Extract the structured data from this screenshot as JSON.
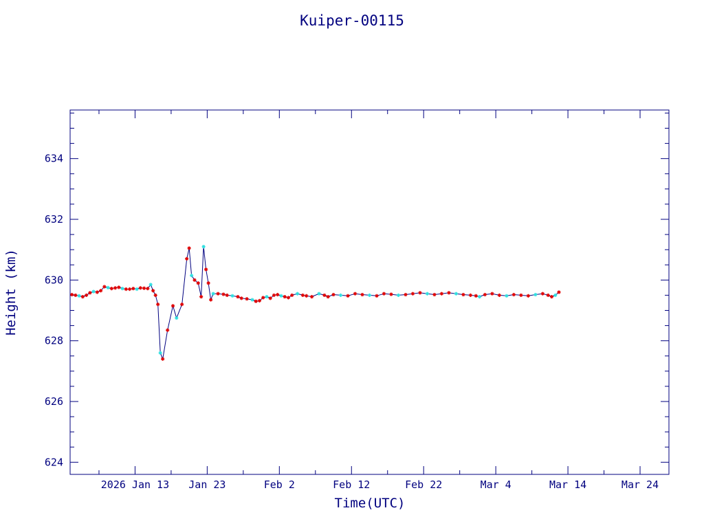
{
  "chart_data": {
    "type": "line",
    "title": "Kuiper-00115",
    "xlabel": "Time(UTC)",
    "ylabel": "Height (km)",
    "ylim": [
      623.6,
      635.6
    ],
    "xlim": [
      "2026-01-04",
      "2026-03-28"
    ],
    "y_ticks": [
      624,
      626,
      628,
      630,
      632,
      634
    ],
    "x_ticks": [
      {
        "date": "2026-01-13",
        "label": "2026 Jan 13"
      },
      {
        "date": "2026-01-23",
        "label": "Jan 23"
      },
      {
        "date": "2026-02-02",
        "label": "Feb  2"
      },
      {
        "date": "2026-02-12",
        "label": "Feb 12"
      },
      {
        "date": "2026-02-22",
        "label": "Feb 22"
      },
      {
        "date": "2026-03-04",
        "label": "Mar  4"
      },
      {
        "date": "2026-03-14",
        "label": "Mar 14"
      },
      {
        "date": "2026-03-24",
        "label": "Mar 24"
      }
    ],
    "grid": false,
    "colors": {
      "axis": "#00007f",
      "line": "#00007f",
      "marker_red": "#e00000",
      "marker_cyan": "#2fe0e0"
    },
    "series": [
      {
        "points": [
          [
            "2026-01-04",
            629.52
          ],
          [
            "2026-01-04",
            629.5
          ],
          [
            "2026-01-05",
            629.48
          ],
          [
            "2026-01-05",
            629.45
          ],
          [
            "2026-01-06",
            629.5
          ],
          [
            "2026-01-06",
            629.58
          ],
          [
            "2026-01-07",
            629.62
          ],
          [
            "2026-01-07",
            629.6
          ],
          [
            "2026-01-08",
            629.65
          ],
          [
            "2026-01-08",
            629.78
          ],
          [
            "2026-01-09",
            629.75
          ],
          [
            "2026-01-09",
            629.72
          ],
          [
            "2026-01-10",
            629.74
          ],
          [
            "2026-01-10",
            629.76
          ],
          [
            "2026-01-11",
            629.72
          ],
          [
            "2026-01-11",
            629.7
          ],
          [
            "2026-01-12",
            629.7
          ],
          [
            "2026-01-12",
            629.72
          ],
          [
            "2026-01-13",
            629.7
          ],
          [
            "2026-01-13",
            629.74
          ],
          [
            "2026-01-14",
            629.73
          ],
          [
            "2026-01-14",
            629.72
          ],
          [
            "2026-01-15",
            629.85
          ],
          [
            "2026-01-15",
            629.65
          ],
          [
            "2026-01-15",
            629.5
          ],
          [
            "2026-01-16",
            629.2
          ],
          [
            "2026-01-16",
            627.6
          ],
          [
            "2026-01-16",
            627.4
          ],
          [
            "2026-01-17",
            628.35
          ],
          [
            "2026-01-18",
            629.15
          ],
          [
            "2026-01-18",
            628.75
          ],
          [
            "2026-01-19",
            629.2
          ],
          [
            "2026-01-20",
            630.7
          ],
          [
            "2026-01-20",
            631.05
          ],
          [
            "2026-01-20",
            630.15
          ],
          [
            "2026-01-21",
            630.0
          ],
          [
            "2026-01-21",
            629.9
          ],
          [
            "2026-01-22",
            629.45
          ],
          [
            "2026-01-22",
            631.1
          ],
          [
            "2026-01-22",
            630.35
          ],
          [
            "2026-01-23",
            629.9
          ],
          [
            "2026-01-23",
            629.35
          ],
          [
            "2026-01-23",
            629.55
          ],
          [
            "2026-01-24",
            629.55
          ],
          [
            "2026-01-25",
            629.53
          ],
          [
            "2026-01-25",
            629.5
          ],
          [
            "2026-01-26",
            629.48
          ],
          [
            "2026-01-27",
            629.45
          ],
          [
            "2026-01-27",
            629.4
          ],
          [
            "2026-01-28",
            629.38
          ],
          [
            "2026-01-29",
            629.35
          ],
          [
            "2026-01-29",
            629.3
          ],
          [
            "2026-01-30",
            629.32
          ],
          [
            "2026-01-30",
            629.42
          ],
          [
            "2026-01-31",
            629.45
          ],
          [
            "2026-01-31",
            629.4
          ],
          [
            "2026-02-01",
            629.5
          ],
          [
            "2026-02-01",
            629.52
          ],
          [
            "2026-02-02",
            629.48
          ],
          [
            "2026-02-02",
            629.45
          ],
          [
            "2026-02-03",
            629.42
          ],
          [
            "2026-02-03",
            629.5
          ],
          [
            "2026-02-04",
            629.55
          ],
          [
            "2026-02-05",
            629.5
          ],
          [
            "2026-02-05",
            629.48
          ],
          [
            "2026-02-06",
            629.45
          ],
          [
            "2026-02-07",
            629.55
          ],
          [
            "2026-02-08",
            629.5
          ],
          [
            "2026-02-08",
            629.45
          ],
          [
            "2026-02-09",
            629.52
          ],
          [
            "2026-02-10",
            629.5
          ],
          [
            "2026-02-11",
            629.48
          ],
          [
            "2026-02-12",
            629.55
          ],
          [
            "2026-02-13",
            629.52
          ],
          [
            "2026-02-14",
            629.5
          ],
          [
            "2026-02-15",
            629.48
          ],
          [
            "2026-02-16",
            629.55
          ],
          [
            "2026-02-17",
            629.53
          ],
          [
            "2026-02-18",
            629.5
          ],
          [
            "2026-02-19",
            629.52
          ],
          [
            "2026-02-20",
            629.55
          ],
          [
            "2026-02-21",
            629.58
          ],
          [
            "2026-02-22",
            629.55
          ],
          [
            "2026-02-23",
            629.52
          ],
          [
            "2026-02-24",
            629.55
          ],
          [
            "2026-02-25",
            629.58
          ],
          [
            "2026-02-26",
            629.55
          ],
          [
            "2026-02-27",
            629.52
          ],
          [
            "2026-02-28",
            629.5
          ],
          [
            "2026-03-01",
            629.48
          ],
          [
            "2026-03-01",
            629.45
          ],
          [
            "2026-03-02",
            629.52
          ],
          [
            "2026-03-03",
            629.55
          ],
          [
            "2026-03-04",
            629.5
          ],
          [
            "2026-03-05",
            629.48
          ],
          [
            "2026-03-06",
            629.52
          ],
          [
            "2026-03-07",
            629.5
          ],
          [
            "2026-03-08",
            629.48
          ],
          [
            "2026-03-09",
            629.52
          ],
          [
            "2026-03-10",
            629.55
          ],
          [
            "2026-03-11",
            629.5
          ],
          [
            "2026-03-11",
            629.45
          ],
          [
            "2026-03-12",
            629.5
          ],
          [
            "2026-03-12",
            629.6
          ]
        ]
      }
    ]
  }
}
